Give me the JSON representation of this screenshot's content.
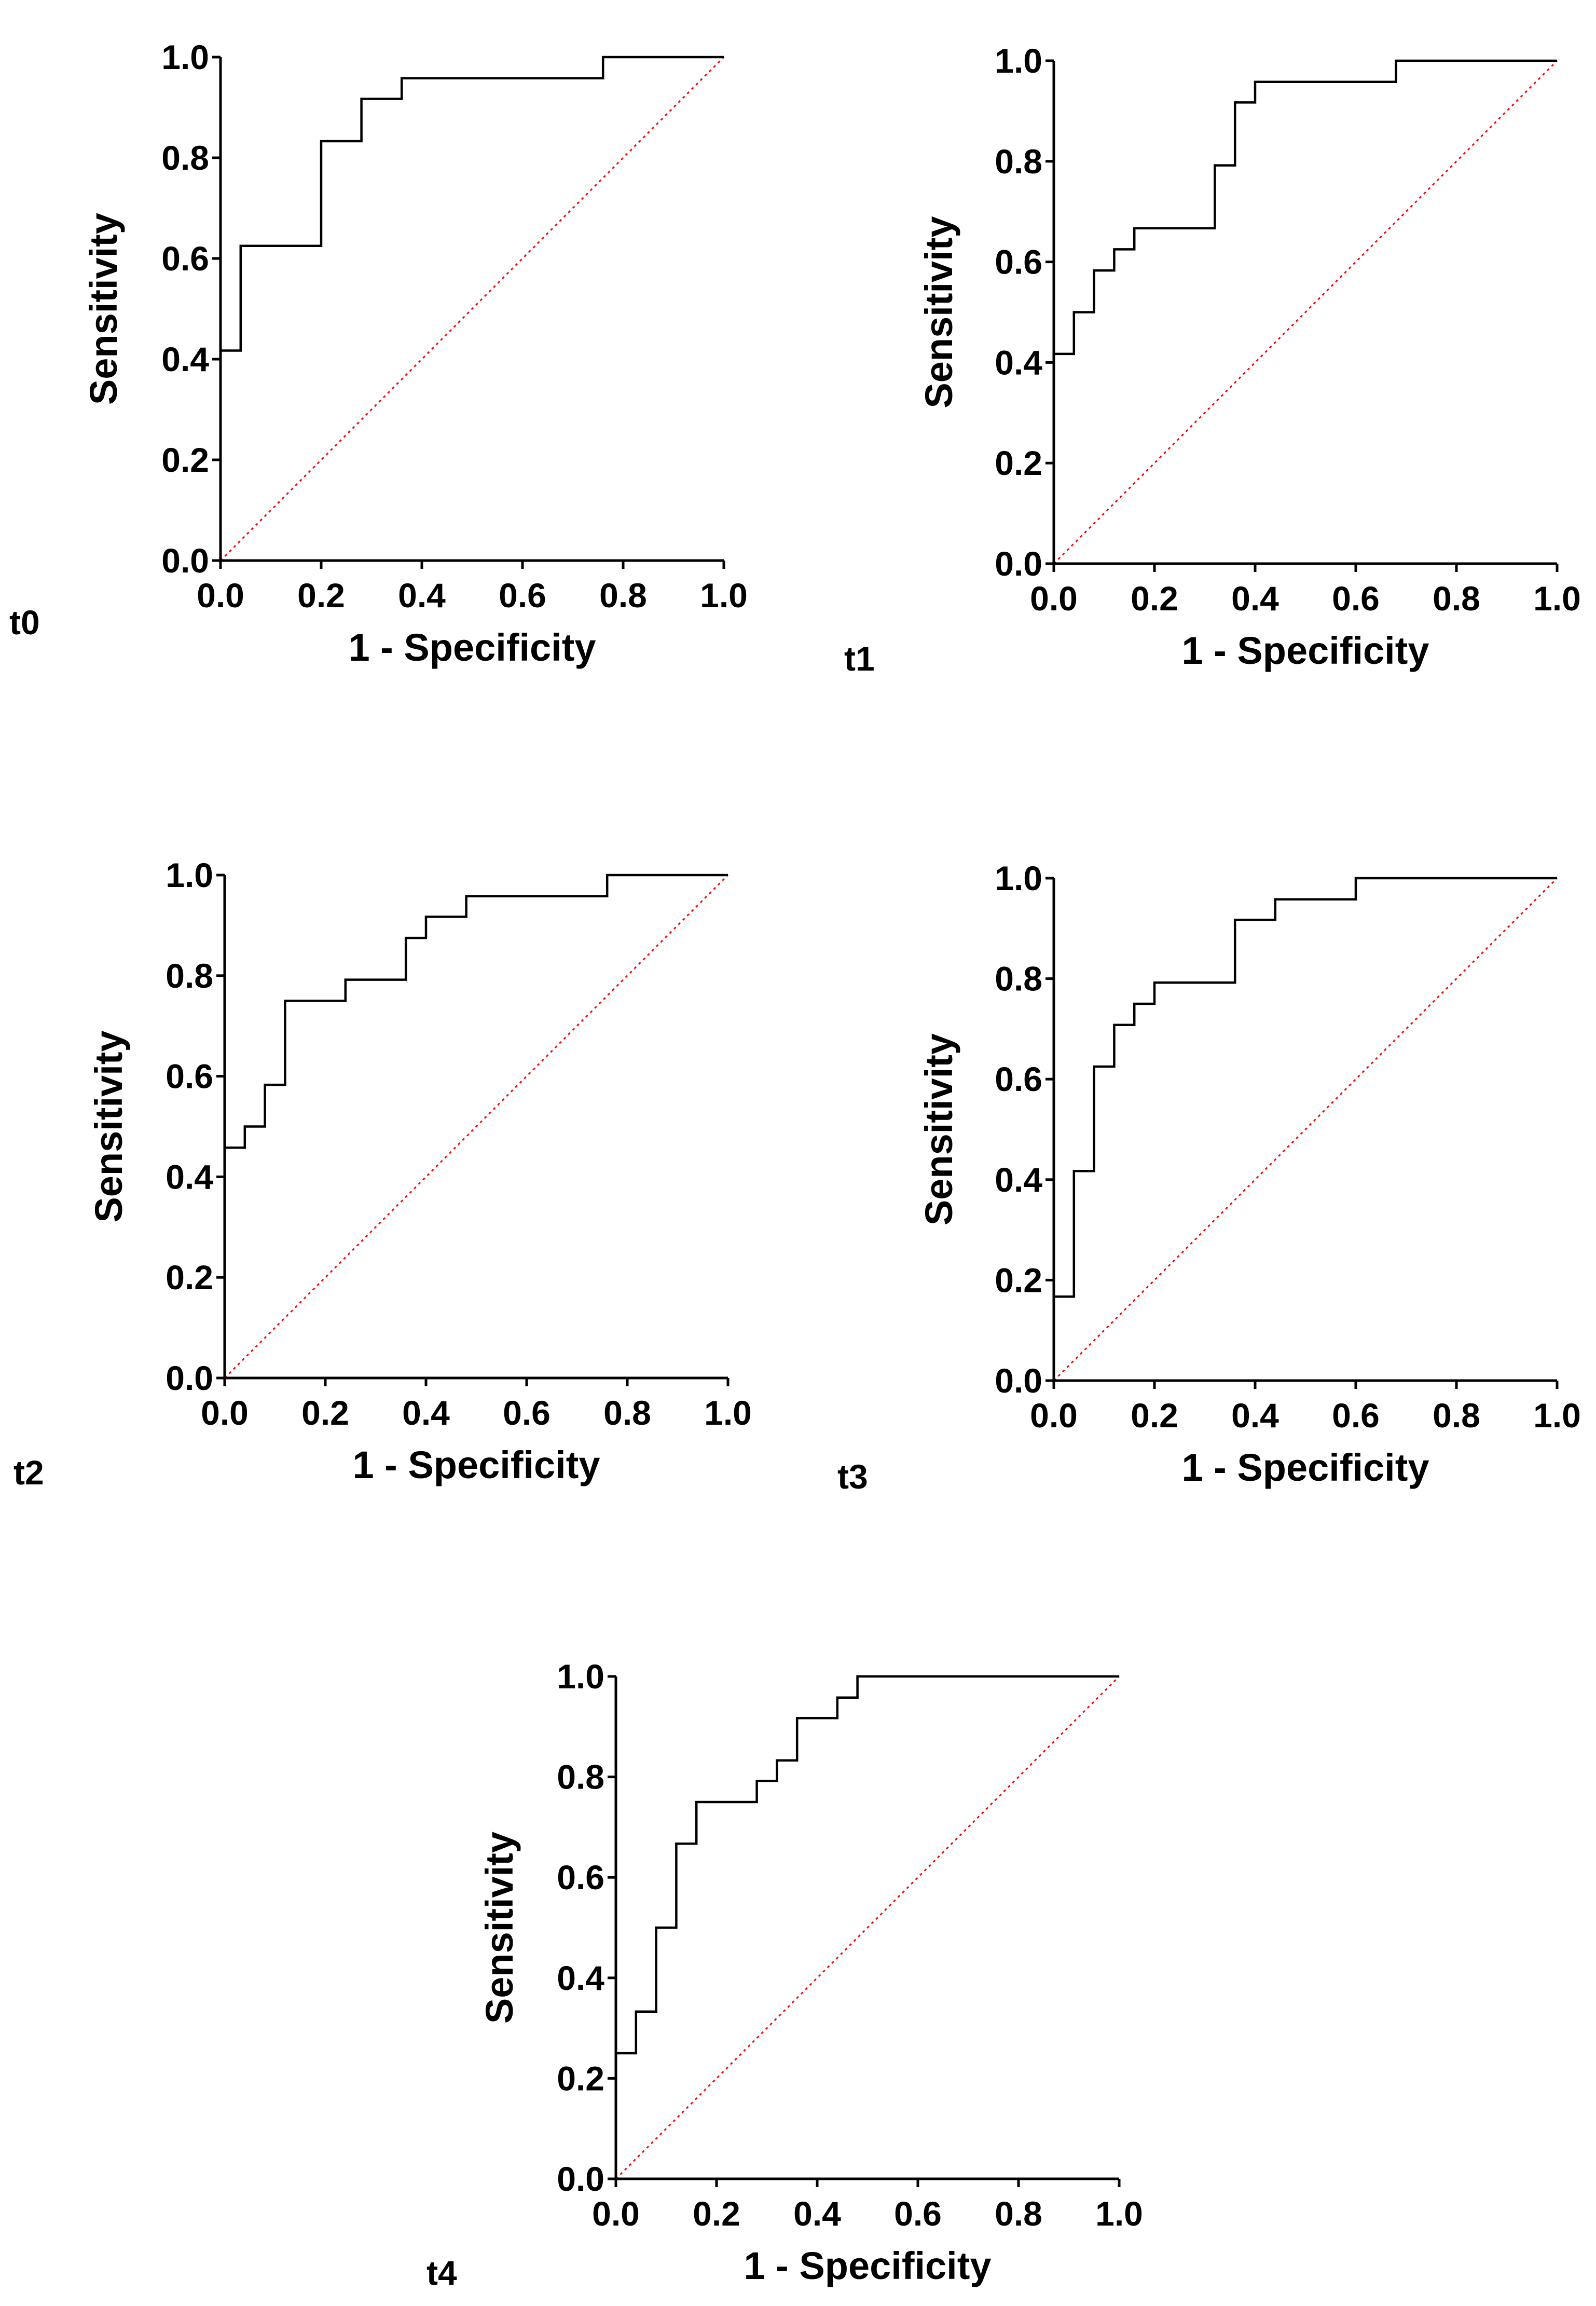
{
  "chart_data": [
    {
      "type": "line",
      "panel_label": "t0",
      "xlabel": "1 - Specificity",
      "ylabel": "Sensitivity",
      "xlim": [
        0,
        1
      ],
      "ylim": [
        0,
        1
      ],
      "ticks": [
        "0.0",
        "0.2",
        "0.4",
        "0.6",
        "0.8",
        "1.0"
      ],
      "series": [
        {
          "name": "ROC",
          "x": [
            0,
            0,
            0.04,
            0.04,
            0.2,
            0.2,
            0.28,
            0.28,
            0.36,
            0.36,
            0.76,
            0.76,
            1.0
          ],
          "y": [
            0,
            0.417,
            0.417,
            0.625,
            0.625,
            0.833,
            0.833,
            0.917,
            0.917,
            0.958,
            0.958,
            1.0,
            1.0
          ]
        },
        {
          "name": "Reference line",
          "x": [
            0,
            1
          ],
          "y": [
            0,
            1
          ]
        }
      ]
    },
    {
      "type": "line",
      "panel_label": "t1",
      "xlabel": "1 - Specificity",
      "ylabel": "Sensitivity",
      "xlim": [
        0,
        1
      ],
      "ylim": [
        0,
        1
      ],
      "ticks": [
        "0.0",
        "0.2",
        "0.4",
        "0.6",
        "0.8",
        "1.0"
      ],
      "series": [
        {
          "name": "ROC",
          "x": [
            0,
            0,
            0.04,
            0.04,
            0.08,
            0.08,
            0.12,
            0.12,
            0.16,
            0.16,
            0.32,
            0.32,
            0.36,
            0.36,
            0.4,
            0.4,
            0.68,
            0.68,
            1.0
          ],
          "y": [
            0,
            0.417,
            0.417,
            0.5,
            0.5,
            0.583,
            0.583,
            0.625,
            0.625,
            0.667,
            0.667,
            0.792,
            0.792,
            0.917,
            0.917,
            0.958,
            0.958,
            1.0,
            1.0
          ]
        },
        {
          "name": "Reference line",
          "x": [
            0,
            1
          ],
          "y": [
            0,
            1
          ]
        }
      ]
    },
    {
      "type": "line",
      "panel_label": "t2",
      "xlabel": "1 - Specificity",
      "ylabel": "Sensitivity",
      "xlim": [
        0,
        1
      ],
      "ylim": [
        0,
        1
      ],
      "ticks": [
        "0.0",
        "0.2",
        "0.4",
        "0.6",
        "0.8",
        "1.0"
      ],
      "series": [
        {
          "name": "ROC",
          "x": [
            0,
            0,
            0.04,
            0.04,
            0.08,
            0.08,
            0.12,
            0.12,
            0.24,
            0.24,
            0.36,
            0.36,
            0.4,
            0.4,
            0.48,
            0.48,
            0.76,
            0.76,
            1.0
          ],
          "y": [
            0,
            0.458,
            0.458,
            0.5,
            0.5,
            0.583,
            0.583,
            0.75,
            0.75,
            0.792,
            0.792,
            0.875,
            0.875,
            0.917,
            0.917,
            0.958,
            0.958,
            1.0,
            1.0
          ]
        },
        {
          "name": "Reference line",
          "x": [
            0,
            1
          ],
          "y": [
            0,
            1
          ]
        }
      ]
    },
    {
      "type": "line",
      "panel_label": "t3",
      "xlabel": "1 - Specificity",
      "ylabel": "Sensitivity",
      "xlim": [
        0,
        1
      ],
      "ylim": [
        0,
        1
      ],
      "ticks": [
        "0.0",
        "0.2",
        "0.4",
        "0.6",
        "0.8",
        "1.0"
      ],
      "series": [
        {
          "name": "ROC",
          "x": [
            0,
            0,
            0.04,
            0.04,
            0.08,
            0.08,
            0.12,
            0.12,
            0.16,
            0.16,
            0.2,
            0.2,
            0.36,
            0.36,
            0.44,
            0.44,
            0.6,
            0.6,
            1.0
          ],
          "y": [
            0,
            0.167,
            0.167,
            0.417,
            0.417,
            0.625,
            0.625,
            0.708,
            0.708,
            0.75,
            0.75,
            0.792,
            0.792,
            0.917,
            0.917,
            0.958,
            0.958,
            1.0,
            1.0
          ]
        },
        {
          "name": "Reference line",
          "x": [
            0,
            1
          ],
          "y": [
            0,
            1
          ]
        }
      ]
    },
    {
      "type": "line",
      "panel_label": "t4",
      "xlabel": "1 - Specificity",
      "ylabel": "Sensitivity",
      "xlim": [
        0,
        1
      ],
      "ylim": [
        0,
        1
      ],
      "ticks": [
        "0.0",
        "0.2",
        "0.4",
        "0.6",
        "0.8",
        "1.0"
      ],
      "series": [
        {
          "name": "ROC",
          "x": [
            0,
            0,
            0.04,
            0.04,
            0.08,
            0.08,
            0.12,
            0.12,
            0.16,
            0.16,
            0.28,
            0.28,
            0.32,
            0.32,
            0.36,
            0.36,
            0.44,
            0.44,
            0.48,
            0.48,
            1.0
          ],
          "y": [
            0,
            0.25,
            0.25,
            0.333,
            0.333,
            0.5,
            0.5,
            0.667,
            0.667,
            0.75,
            0.75,
            0.792,
            0.792,
            0.833,
            0.833,
            0.917,
            0.917,
            0.958,
            0.958,
            1.0,
            1.0
          ]
        },
        {
          "name": "Reference line",
          "x": [
            0,
            1
          ],
          "y": [
            0,
            1
          ]
        }
      ]
    }
  ],
  "colors": {
    "roc": "#000000",
    "reference": "#ff0000"
  }
}
